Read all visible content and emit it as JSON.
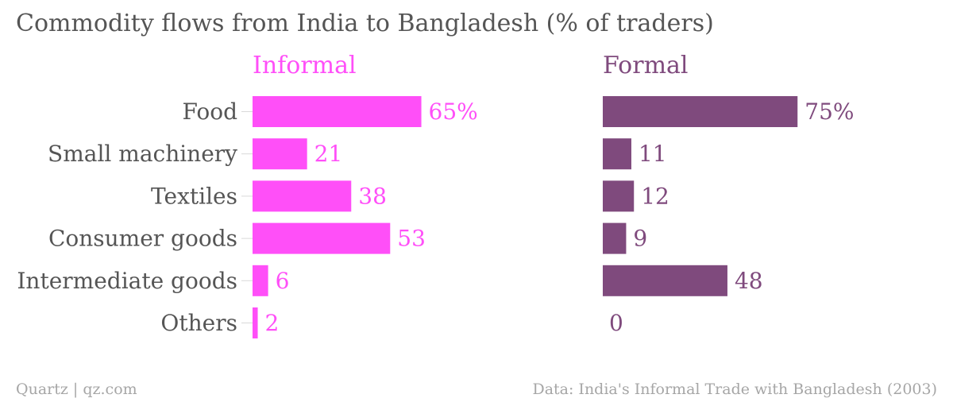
{
  "title": "Commodity flows from India to Bangladesh (% of traders)",
  "footer": {
    "source_left": "Quartz | qz.com",
    "source_right": "Data: India's Informal Trade with Bangladesh (2003)"
  },
  "chart_data": {
    "type": "bar",
    "orientation": "horizontal",
    "title": "Commodity flows from India to Bangladesh (% of traders)",
    "categories": [
      "Food",
      "Small machinery",
      "Textiles",
      "Consumer goods",
      "Intermediate goods",
      "Others"
    ],
    "series": [
      {
        "name": "Informal",
        "values": [
          65,
          21,
          38,
          53,
          6,
          2
        ],
        "labels": [
          "65%",
          "21",
          "38",
          "53",
          "6",
          "2"
        ],
        "color": "#ff4ff8"
      },
      {
        "name": "Formal",
        "values": [
          75,
          11,
          12,
          9,
          48,
          0
        ],
        "labels": [
          "75%",
          "11",
          "12",
          "9",
          "48",
          "0"
        ],
        "color": "#7f4a7d"
      }
    ],
    "xlim": [
      0,
      100
    ],
    "grid": false,
    "legend": "panel titles above each panel",
    "category_label_color": "#555555"
  }
}
